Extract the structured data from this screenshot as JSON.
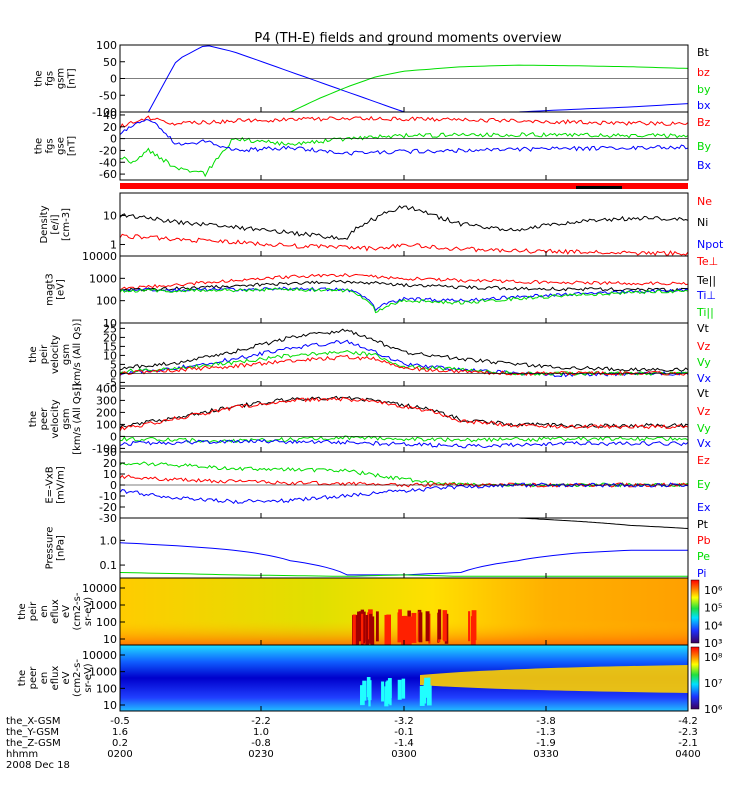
{
  "title": "P4 (TH-E) fields and ground moments overview",
  "colors": {
    "black": "#000000",
    "red": "#ff0000",
    "green": "#00dd00",
    "blue": "#0000ff"
  },
  "ephemeris": {
    "labels": [
      "the_X-GSM",
      "the_Y-GSM",
      "the_Z-GSM",
      "hhmm",
      "2008 Dec 18"
    ],
    "rows": [
      [
        "-0.5",
        "-2.2",
        "-3.2",
        "-3.8",
        "-4.2"
      ],
      [
        "1.6",
        "1.0",
        "-0.1",
        "-1.3",
        "-2.3"
      ],
      [
        "0.2",
        "-0.8",
        "-1.4",
        "-1.9",
        "-2.1"
      ],
      [
        "0200",
        "0230",
        "0300",
        "0330",
        "0400"
      ]
    ]
  },
  "chart_data": [
    {
      "type": "line",
      "id": "bgsm",
      "ylabel": [
        "the",
        "fgs",
        "gsm",
        "[nT]"
      ],
      "yticks": [
        "100",
        "50",
        "0",
        "-50",
        "-100"
      ],
      "ylim": [
        -100,
        100
      ],
      "legend": [
        {
          "label": "Bt",
          "color": "#000000"
        },
        {
          "label": "bz",
          "color": "#ff0000"
        },
        {
          "label": "by",
          "color": "#00dd00"
        },
        {
          "label": "bx",
          "color": "#0000ff"
        }
      ],
      "series": [
        {
          "color": "#0000ff",
          "x": [
            0.05,
            0.1,
            0.15,
            0.2,
            0.3,
            0.4,
            0.5,
            0.6,
            0.7,
            0.8,
            0.9,
            1.0
          ],
          "y": [
            -100,
            55,
            100,
            80,
            20,
            -40,
            -100,
            -100,
            -100,
            -92,
            -85,
            -75
          ]
        },
        {
          "color": "#00dd00",
          "x": [
            0.3,
            0.35,
            0.4,
            0.45,
            0.5,
            0.6,
            0.7,
            0.8,
            0.9,
            1.0
          ],
          "y": [
            -100,
            -60,
            -25,
            5,
            22,
            35,
            40,
            38,
            35,
            30
          ]
        }
      ]
    },
    {
      "type": "line",
      "id": "bgse",
      "ylabel": [
        "the",
        "fgs",
        "gse",
        "[nT]"
      ],
      "yticks": [
        "40",
        "20",
        "0",
        "-20",
        "-40",
        "-60"
      ],
      "ylim": [
        -70,
        45
      ],
      "legend": [
        {
          "label": "Bz",
          "color": "#ff0000"
        },
        {
          "label": "By",
          "color": "#00dd00"
        },
        {
          "label": "Bx",
          "color": "#0000ff"
        }
      ],
      "series": [
        {
          "color": "#ff0000",
          "x": [
            0.0,
            0.05,
            0.1,
            0.2,
            0.3,
            0.4,
            0.5,
            0.6,
            0.7,
            0.8,
            0.9,
            1.0
          ],
          "y": [
            20,
            35,
            25,
            30,
            32,
            34,
            33,
            32,
            30,
            28,
            26,
            25
          ]
        },
        {
          "color": "#00dd00",
          "x": [
            0.0,
            0.02,
            0.05,
            0.1,
            0.15,
            0.2,
            0.3,
            0.4,
            0.5,
            0.6,
            0.7,
            0.8,
            0.9,
            1.0
          ],
          "y": [
            -30,
            -40,
            -20,
            -50,
            -60,
            0,
            -10,
            0,
            5,
            6,
            7,
            6,
            5,
            5
          ]
        },
        {
          "color": "#0000ff",
          "x": [
            0.0,
            0.02,
            0.05,
            0.1,
            0.15,
            0.2,
            0.3,
            0.4,
            0.5,
            0.6,
            0.7,
            0.8,
            0.9,
            1.0
          ],
          "y": [
            10,
            20,
            35,
            -10,
            -5,
            -20,
            -15,
            -25,
            -22,
            -20,
            -18,
            -17,
            -15,
            -14
          ]
        }
      ]
    },
    {
      "type": "line",
      "id": "density",
      "ylabel": [
        "Density",
        "[e/i]",
        "[cm-3]"
      ],
      "yticks": [
        "10",
        "1"
      ],
      "yscale": "log",
      "ylim": [
        0.4,
        60
      ],
      "legend": [
        {
          "label": "Ne",
          "color": "#ff0000"
        },
        {
          "label": "Ni",
          "color": "#000000"
        },
        {
          "label": "Npot",
          "color": "#0000ff"
        }
      ],
      "series": [
        {
          "color": "#000000",
          "x": [
            0.0,
            0.1,
            0.2,
            0.3,
            0.4,
            0.45,
            0.5,
            0.55,
            0.6,
            0.7,
            0.8,
            0.9,
            1.0
          ],
          "y": [
            10,
            6,
            4,
            2.5,
            1.5,
            8,
            20,
            10,
            5,
            3,
            6,
            8,
            8
          ]
        },
        {
          "color": "#ff0000",
          "x": [
            0.0,
            0.1,
            0.2,
            0.3,
            0.4,
            0.45,
            0.5,
            0.55,
            0.6,
            0.7,
            0.8,
            0.9,
            1.0
          ],
          "y": [
            2,
            1.5,
            1.2,
            0.9,
            0.8,
            0.7,
            1.0,
            0.8,
            0.7,
            0.6,
            0.55,
            0.5,
            0.5
          ]
        }
      ]
    },
    {
      "type": "line",
      "id": "temperature",
      "ylabel": [
        "magt3",
        "[eV]"
      ],
      "yticks": [
        "10000",
        "1000",
        "100",
        "10"
      ],
      "yscale": "log",
      "ylim": [
        10,
        10000
      ],
      "legend": [
        {
          "label": "Te⊥",
          "color": "#ff0000"
        },
        {
          "label": "Te||",
          "color": "#000000"
        },
        {
          "label": "Ti⊥",
          "color": "#0000ff"
        },
        {
          "label": "Ti||",
          "color": "#00dd00"
        }
      ],
      "series": [
        {
          "color": "#ff0000",
          "x": [
            0.0,
            0.1,
            0.2,
            0.3,
            0.4,
            0.5,
            0.6,
            0.7,
            0.8,
            0.9,
            1.0
          ],
          "y": [
            350,
            500,
            800,
            1200,
            1400,
            1000,
            800,
            700,
            650,
            600,
            600
          ]
        },
        {
          "color": "#000000",
          "x": [
            0.0,
            0.1,
            0.2,
            0.3,
            0.4,
            0.5,
            0.6,
            0.7,
            0.8,
            0.9,
            1.0
          ],
          "y": [
            300,
            350,
            450,
            600,
            700,
            500,
            400,
            350,
            330,
            320,
            300
          ]
        },
        {
          "color": "#0000ff",
          "x": [
            0.0,
            0.1,
            0.2,
            0.3,
            0.4,
            0.45,
            0.5,
            0.6,
            0.7,
            0.8,
            0.9,
            1.0
          ],
          "y": [
            300,
            300,
            320,
            350,
            300,
            40,
            120,
            100,
            150,
            200,
            250,
            300
          ]
        },
        {
          "color": "#00dd00",
          "x": [
            0.0,
            0.1,
            0.2,
            0.3,
            0.4,
            0.45,
            0.5,
            0.6,
            0.7,
            0.8,
            0.9,
            1.0
          ],
          "y": [
            280,
            280,
            300,
            320,
            280,
            30,
            100,
            80,
            120,
            180,
            230,
            280
          ]
        }
      ]
    },
    {
      "type": "line",
      "id": "velocity_gsm",
      "ylabel": [
        "the",
        "peir",
        "velocity",
        "gsm",
        "[km/s (All Qs)]"
      ],
      "yticks": [
        "25",
        "20",
        "15",
        "10",
        "5",
        "0",
        "-5"
      ],
      "ylim": [
        -7,
        28
      ],
      "legend": [
        {
          "label": "Vt",
          "color": "#000000"
        },
        {
          "label": "Vz",
          "color": "#ff0000"
        },
        {
          "label": "Vy",
          "color": "#00dd00"
        },
        {
          "label": "Vx",
          "color": "#0000ff"
        }
      ],
      "series": [
        {
          "color": "#000000",
          "x": [
            0.0,
            0.1,
            0.2,
            0.3,
            0.4,
            0.45,
            0.5,
            0.6,
            0.7,
            0.8,
            0.9,
            1.0
          ],
          "y": [
            3,
            6,
            12,
            20,
            24,
            18,
            12,
            8,
            5,
            3,
            2,
            2
          ]
        },
        {
          "color": "#0000ff",
          "x": [
            0.0,
            0.1,
            0.2,
            0.3,
            0.4,
            0.45,
            0.5,
            0.6,
            0.7,
            0.8,
            0.9,
            1.0
          ],
          "y": [
            0,
            3,
            8,
            14,
            18,
            12,
            5,
            2,
            0,
            -1,
            0,
            0
          ]
        },
        {
          "color": "#00dd00",
          "x": [
            0.0,
            0.1,
            0.2,
            0.3,
            0.4,
            0.45,
            0.5,
            0.6,
            0.7,
            0.8,
            0.9,
            1.0
          ],
          "y": [
            1,
            3,
            6,
            10,
            12,
            10,
            4,
            2,
            0,
            0,
            0,
            0
          ]
        },
        {
          "color": "#ff0000",
          "x": [
            0.0,
            0.1,
            0.2,
            0.3,
            0.4,
            0.45,
            0.5,
            0.6,
            0.7,
            0.8,
            0.9,
            1.0
          ],
          "y": [
            0,
            2,
            4,
            7,
            9,
            8,
            3,
            1,
            0,
            0,
            0,
            0
          ]
        }
      ]
    },
    {
      "type": "line",
      "id": "velocity_gse",
      "ylabel": [
        "the",
        "peer",
        "velocity",
        "gsm",
        "[km/s (All Qs)]"
      ],
      "yticks": [
        "400",
        "300",
        "200",
        "100",
        "0",
        "-100"
      ],
      "ylim": [
        -130,
        420
      ],
      "legend": [
        {
          "label": "Vt",
          "color": "#000000"
        },
        {
          "label": "Vz",
          "color": "#ff0000"
        },
        {
          "label": "Vy",
          "color": "#00dd00"
        },
        {
          "label": "Vx",
          "color": "#0000ff"
        }
      ],
      "series": [
        {
          "color": "#000000",
          "x": [
            0.0,
            0.1,
            0.2,
            0.3,
            0.4,
            0.45,
            0.5,
            0.55,
            0.6,
            0.7,
            0.8,
            0.9,
            1.0
          ],
          "y": [
            80,
            160,
            250,
            310,
            320,
            300,
            260,
            220,
            140,
            100,
            90,
            90,
            90
          ]
        },
        {
          "color": "#ff0000",
          "x": [
            0.0,
            0.1,
            0.2,
            0.3,
            0.4,
            0.45,
            0.5,
            0.55,
            0.6,
            0.7,
            0.8,
            0.9,
            1.0
          ],
          "y": [
            60,
            150,
            240,
            300,
            310,
            290,
            250,
            210,
            130,
            90,
            80,
            80,
            80
          ]
        },
        {
          "color": "#00dd00",
          "x": [
            0.0,
            0.2,
            0.4,
            0.6,
            0.8,
            1.0
          ],
          "y": [
            -20,
            -40,
            -10,
            -30,
            -20,
            -20
          ]
        },
        {
          "color": "#0000ff",
          "x": [
            0.0,
            0.2,
            0.4,
            0.6,
            0.8,
            1.0
          ],
          "y": [
            -60,
            -40,
            -50,
            -80,
            -60,
            -60
          ]
        }
      ]
    },
    {
      "type": "line",
      "id": "efield",
      "ylabel": [
        "E=-VxB",
        "[mV/m]"
      ],
      "yticks": [
        "30",
        "20",
        "10",
        "0",
        "-10",
        "-20",
        "-30"
      ],
      "ylim": [
        -30,
        30
      ],
      "legend": [
        {
          "label": "Ez",
          "color": "#ff0000"
        },
        {
          "label": "Ey",
          "color": "#00dd00"
        },
        {
          "label": "Ex",
          "color": "#0000ff"
        }
      ],
      "series": [
        {
          "color": "#00dd00",
          "x": [
            0.0,
            0.1,
            0.2,
            0.3,
            0.4,
            0.5,
            0.6,
            0.7,
            0.8,
            0.9,
            1.0
          ],
          "y": [
            20,
            18,
            15,
            14,
            13,
            5,
            1,
            0,
            0,
            0,
            0
          ]
        },
        {
          "color": "#ff0000",
          "x": [
            0.0,
            0.1,
            0.2,
            0.3,
            0.4,
            0.5,
            0.6,
            0.7,
            0.8,
            0.9,
            1.0
          ],
          "y": [
            8,
            5,
            3,
            2,
            1,
            0,
            0,
            0,
            0,
            0,
            0
          ]
        },
        {
          "color": "#0000ff",
          "x": [
            0.0,
            0.1,
            0.2,
            0.3,
            0.4,
            0.5,
            0.6,
            0.7,
            0.8,
            0.9,
            1.0
          ],
          "y": [
            -5,
            -12,
            -15,
            -14,
            -10,
            -5,
            -2,
            0,
            0,
            0,
            0
          ]
        }
      ]
    },
    {
      "type": "line",
      "id": "pressure",
      "ylabel": [
        "Pressure",
        "[nPa]"
      ],
      "yticks": [
        "1.0",
        "0.1"
      ],
      "yscale": "log",
      "ylim": [
        0.03,
        8
      ],
      "legend": [
        {
          "label": "Pt",
          "color": "#000000"
        },
        {
          "label": "Pb",
          "color": "#ff0000"
        },
        {
          "label": "Pe",
          "color": "#00dd00"
        },
        {
          "label": "Pi",
          "color": "#0000ff"
        }
      ],
      "series": [
        {
          "color": "#000000",
          "x": [
            0.7,
            0.8,
            0.9,
            1.0
          ],
          "y": [
            8,
            6,
            4,
            3
          ]
        },
        {
          "color": "#0000ff",
          "x": [
            0.0,
            0.1,
            0.2,
            0.3,
            0.4,
            0.5,
            0.6,
            0.7,
            0.8,
            0.9,
            1.0
          ],
          "y": [
            0.8,
            0.6,
            0.4,
            0.15,
            0.04,
            0.04,
            0.05,
            0.15,
            0.3,
            0.4,
            0.4
          ]
        },
        {
          "color": "#00dd00",
          "x": [
            0.0,
            0.2,
            0.4,
            0.5,
            0.6,
            0.8,
            1.0
          ],
          "y": [
            0.05,
            0.04,
            0.035,
            0.04,
            0.035,
            0.035,
            0.035
          ]
        }
      ]
    },
    {
      "type": "heatmap",
      "id": "ion_spec",
      "ylabel": [
        "the",
        "peir",
        "en",
        "eflux",
        "eV",
        "(cm2-s-",
        "sr-eV)"
      ],
      "yticks": [
        "10000",
        "1000",
        "100",
        "10"
      ],
      "colorbar": {
        "ticks": [
          "10⁶",
          "10⁵",
          "10⁴",
          "10³"
        ]
      }
    },
    {
      "type": "heatmap",
      "id": "electron_spec",
      "ylabel": [
        "the",
        "peer",
        "en",
        "eflux",
        "eV",
        "(cm2-s-",
        "sr-eV)"
      ],
      "yticks": [
        "10000",
        "1000",
        "100",
        "10"
      ],
      "colorbar": {
        "ticks": [
          "10⁸",
          "10⁷",
          "10⁶"
        ]
      }
    }
  ]
}
